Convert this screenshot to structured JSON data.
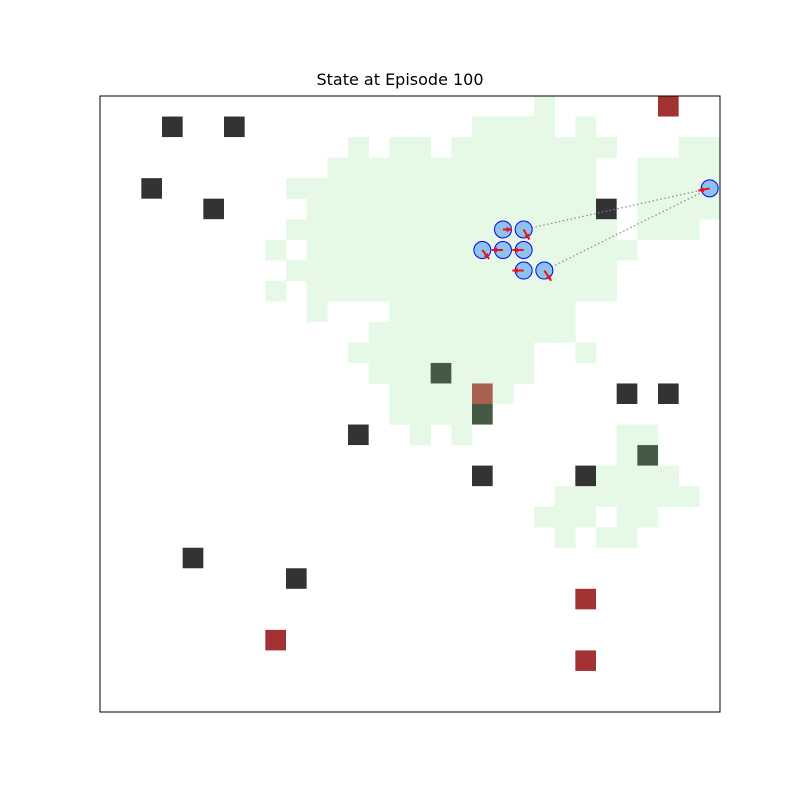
{
  "title": "State at Episode 100",
  "grid": {
    "cols": 30,
    "rows": 30
  },
  "colors": {
    "explored": "#e6f9e6",
    "obstacle": "#333333",
    "obstacle_explored": "#455a45",
    "target": "#a33333",
    "target_explored": "#a86050",
    "agent_fill": "#8ec3f0",
    "agent_edge": "#0000ee",
    "arrow": "#ee1111",
    "link": "#888888"
  },
  "explored_cells": [
    [
      21,
      0
    ],
    [
      18,
      1
    ],
    [
      19,
      1
    ],
    [
      20,
      1
    ],
    [
      21,
      1
    ],
    [
      23,
      1
    ],
    [
      12,
      2
    ],
    [
      14,
      2
    ],
    [
      15,
      2
    ],
    [
      17,
      2
    ],
    [
      18,
      2
    ],
    [
      19,
      2
    ],
    [
      20,
      2
    ],
    [
      21,
      2
    ],
    [
      22,
      2
    ],
    [
      23,
      2
    ],
    [
      24,
      2
    ],
    [
      28,
      2
    ],
    [
      29,
      2
    ],
    [
      11,
      3
    ],
    [
      12,
      3
    ],
    [
      13,
      3
    ],
    [
      14,
      3
    ],
    [
      15,
      3
    ],
    [
      16,
      3
    ],
    [
      17,
      3
    ],
    [
      18,
      3
    ],
    [
      19,
      3
    ],
    [
      20,
      3
    ],
    [
      21,
      3
    ],
    [
      22,
      3
    ],
    [
      23,
      3
    ],
    [
      26,
      3
    ],
    [
      27,
      3
    ],
    [
      28,
      3
    ],
    [
      29,
      3
    ],
    [
      9,
      4
    ],
    [
      10,
      4
    ],
    [
      11,
      4
    ],
    [
      12,
      4
    ],
    [
      13,
      4
    ],
    [
      14,
      4
    ],
    [
      15,
      4
    ],
    [
      16,
      4
    ],
    [
      17,
      4
    ],
    [
      18,
      4
    ],
    [
      19,
      4
    ],
    [
      20,
      4
    ],
    [
      21,
      4
    ],
    [
      22,
      4
    ],
    [
      23,
      4
    ],
    [
      26,
      4
    ],
    [
      27,
      4
    ],
    [
      28,
      4
    ],
    [
      29,
      4
    ],
    [
      10,
      5
    ],
    [
      11,
      5
    ],
    [
      12,
      5
    ],
    [
      13,
      5
    ],
    [
      14,
      5
    ],
    [
      15,
      5
    ],
    [
      16,
      5
    ],
    [
      17,
      5
    ],
    [
      18,
      5
    ],
    [
      19,
      5
    ],
    [
      20,
      5
    ],
    [
      21,
      5
    ],
    [
      22,
      5
    ],
    [
      23,
      5
    ],
    [
      26,
      5
    ],
    [
      27,
      5
    ],
    [
      28,
      5
    ],
    [
      29,
      5
    ],
    [
      9,
      6
    ],
    [
      10,
      6
    ],
    [
      11,
      6
    ],
    [
      12,
      6
    ],
    [
      13,
      6
    ],
    [
      14,
      6
    ],
    [
      15,
      6
    ],
    [
      16,
      6
    ],
    [
      17,
      6
    ],
    [
      18,
      6
    ],
    [
      19,
      6
    ],
    [
      20,
      6
    ],
    [
      21,
      6
    ],
    [
      22,
      6
    ],
    [
      23,
      6
    ],
    [
      24,
      6
    ],
    [
      26,
      6
    ],
    [
      27,
      6
    ],
    [
      28,
      6
    ],
    [
      8,
      7
    ],
    [
      10,
      7
    ],
    [
      11,
      7
    ],
    [
      12,
      7
    ],
    [
      13,
      7
    ],
    [
      14,
      7
    ],
    [
      15,
      7
    ],
    [
      16,
      7
    ],
    [
      17,
      7
    ],
    [
      18,
      7
    ],
    [
      19,
      7
    ],
    [
      20,
      7
    ],
    [
      21,
      7
    ],
    [
      22,
      7
    ],
    [
      23,
      7
    ],
    [
      24,
      7
    ],
    [
      25,
      7
    ],
    [
      9,
      8
    ],
    [
      10,
      8
    ],
    [
      11,
      8
    ],
    [
      12,
      8
    ],
    [
      13,
      8
    ],
    [
      14,
      8
    ],
    [
      15,
      8
    ],
    [
      16,
      8
    ],
    [
      17,
      8
    ],
    [
      18,
      8
    ],
    [
      19,
      8
    ],
    [
      20,
      8
    ],
    [
      21,
      8
    ],
    [
      22,
      8
    ],
    [
      23,
      8
    ],
    [
      24,
      8
    ],
    [
      8,
      9
    ],
    [
      10,
      9
    ],
    [
      11,
      9
    ],
    [
      12,
      9
    ],
    [
      13,
      9
    ],
    [
      14,
      9
    ],
    [
      15,
      9
    ],
    [
      16,
      9
    ],
    [
      17,
      9
    ],
    [
      18,
      9
    ],
    [
      19,
      9
    ],
    [
      20,
      9
    ],
    [
      21,
      9
    ],
    [
      22,
      9
    ],
    [
      23,
      9
    ],
    [
      24,
      9
    ],
    [
      10,
      10
    ],
    [
      14,
      10
    ],
    [
      15,
      10
    ],
    [
      16,
      10
    ],
    [
      17,
      10
    ],
    [
      18,
      10
    ],
    [
      19,
      10
    ],
    [
      20,
      10
    ],
    [
      21,
      10
    ],
    [
      22,
      10
    ],
    [
      13,
      11
    ],
    [
      14,
      11
    ],
    [
      15,
      11
    ],
    [
      16,
      11
    ],
    [
      17,
      11
    ],
    [
      18,
      11
    ],
    [
      19,
      11
    ],
    [
      20,
      11
    ],
    [
      21,
      11
    ],
    [
      22,
      11
    ],
    [
      12,
      12
    ],
    [
      13,
      12
    ],
    [
      14,
      12
    ],
    [
      15,
      12
    ],
    [
      16,
      12
    ],
    [
      17,
      12
    ],
    [
      18,
      12
    ],
    [
      19,
      12
    ],
    [
      20,
      12
    ],
    [
      23,
      12
    ],
    [
      13,
      13
    ],
    [
      14,
      13
    ],
    [
      15,
      13
    ],
    [
      16,
      13
    ],
    [
      17,
      13
    ],
    [
      18,
      13
    ],
    [
      19,
      13
    ],
    [
      20,
      13
    ],
    [
      14,
      14
    ],
    [
      15,
      14
    ],
    [
      16,
      14
    ],
    [
      17,
      14
    ],
    [
      18,
      14
    ],
    [
      19,
      14
    ],
    [
      14,
      15
    ],
    [
      15,
      15
    ],
    [
      16,
      15
    ],
    [
      17,
      15
    ],
    [
      18,
      15
    ],
    [
      15,
      16
    ],
    [
      17,
      16
    ],
    [
      25,
      16
    ],
    [
      26,
      16
    ],
    [
      25,
      17
    ],
    [
      26,
      17
    ],
    [
      24,
      18
    ],
    [
      25,
      18
    ],
    [
      26,
      18
    ],
    [
      27,
      18
    ],
    [
      22,
      19
    ],
    [
      23,
      19
    ],
    [
      24,
      19
    ],
    [
      25,
      19
    ],
    [
      26,
      19
    ],
    [
      27,
      19
    ],
    [
      28,
      19
    ],
    [
      21,
      20
    ],
    [
      22,
      20
    ],
    [
      23,
      20
    ],
    [
      25,
      20
    ],
    [
      26,
      20
    ],
    [
      22,
      21
    ],
    [
      24,
      21
    ],
    [
      25,
      21
    ]
  ],
  "obstacles": [
    [
      3,
      1
    ],
    [
      6,
      1
    ],
    [
      2,
      4
    ],
    [
      5,
      5
    ],
    [
      24,
      5
    ],
    [
      16,
      13
    ],
    [
      25,
      14
    ],
    [
      27,
      14
    ],
    [
      18,
      15
    ],
    [
      12,
      16
    ],
    [
      26,
      17
    ],
    [
      18,
      18
    ],
    [
      23,
      18
    ],
    [
      4,
      22
    ],
    [
      9,
      23
    ]
  ],
  "targets": [
    [
      27,
      0
    ],
    [
      18,
      14
    ],
    [
      23,
      24
    ],
    [
      8,
      26
    ],
    [
      23,
      27
    ]
  ],
  "agents": [
    {
      "x": 19.5,
      "y": 6.5,
      "dx": 0.4,
      "dy": 0.0
    },
    {
      "x": 20.5,
      "y": 6.5,
      "dx": 0.25,
      "dy": 0.45
    },
    {
      "x": 18.5,
      "y": 7.5,
      "dx": 0.3,
      "dy": 0.4
    },
    {
      "x": 19.5,
      "y": 7.5,
      "dx": -0.5,
      "dy": 0.0
    },
    {
      "x": 20.5,
      "y": 7.5,
      "dx": -0.5,
      "dy": 0.0
    },
    {
      "x": 20.5,
      "y": 8.5,
      "dx": -0.5,
      "dy": 0.0
    },
    {
      "x": 21.5,
      "y": 8.5,
      "dx": 0.3,
      "dy": 0.45
    },
    {
      "x": 29.5,
      "y": 4.5,
      "dx": -0.5,
      "dy": 0.1
    }
  ],
  "links": [
    [
      1,
      7
    ],
    [
      6,
      7
    ]
  ]
}
